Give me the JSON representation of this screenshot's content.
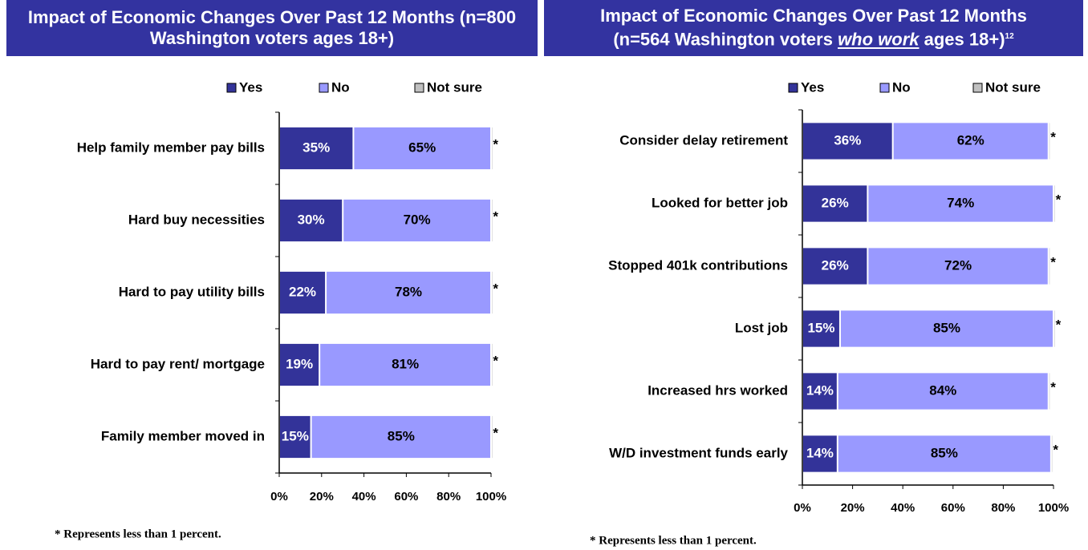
{
  "chart_data": [
    {
      "type": "bar",
      "orientation": "horizontal",
      "stacked": true,
      "title": [
        "Impact of Economic Changes Over Past 12 Months (n=800 Washington voters ages 18+)"
      ],
      "categories": [
        "Help family member pay bills",
        "Hard buy necessities",
        "Hard to pay utility bills",
        "Hard to pay rent/ mortgage",
        "Family member moved in"
      ],
      "series": [
        {
          "name": "Yes",
          "color": "#333399",
          "values": [
            35,
            30,
            22,
            19,
            15
          ],
          "value_labels": [
            "35%",
            "30%",
            "22%",
            "19%",
            "15%"
          ]
        },
        {
          "name": "No",
          "color": "#9999ff",
          "values": [
            65,
            70,
            78,
            81,
            85
          ],
          "value_labels": [
            "65%",
            "70%",
            "78%",
            "81%",
            "85%"
          ]
        },
        {
          "name": "Not sure",
          "color": "#c0c0c0",
          "values": [
            0.5,
            0.5,
            0.5,
            0.5,
            0.5
          ],
          "value_labels": [
            "*",
            "*",
            "*",
            "*",
            "*"
          ]
        }
      ],
      "xlim": [
        0,
        100
      ],
      "xticks": [
        {
          "value": 0,
          "label": "0%"
        },
        {
          "value": 20,
          "label": "20%"
        },
        {
          "value": 40,
          "label": "40%"
        },
        {
          "value": 60,
          "label": "60%"
        },
        {
          "value": 80,
          "label": "80%"
        },
        {
          "value": 100,
          "label": "100%"
        }
      ],
      "legend": "top",
      "footnote": "* Represents less than 1 percent."
    },
    {
      "type": "bar",
      "orientation": "horizontal",
      "stacked": true,
      "title": [
        "Impact of Economic Changes Over Past 12 Months",
        "(n=564 Washington voters ",
        "who work",
        " ages 18+)",
        "12"
      ],
      "categories": [
        "Consider delay retirement",
        "Looked for better job",
        "Stopped 401k contributions",
        "Lost job",
        "Increased hrs worked",
        "W/D investment funds early"
      ],
      "series": [
        {
          "name": "Yes",
          "color": "#333399",
          "values": [
            36,
            26,
            26,
            15,
            14,
            14
          ],
          "value_labels": [
            "36%",
            "26%",
            "26%",
            "15%",
            "14%",
            "14%"
          ]
        },
        {
          "name": "No",
          "color": "#9999ff",
          "values": [
            62,
            74,
            72,
            85,
            84,
            85
          ],
          "value_labels": [
            "62%",
            "74%",
            "72%",
            "85%",
            "84%",
            "85%"
          ]
        },
        {
          "name": "Not sure",
          "color": "#c0c0c0",
          "values": [
            0.5,
            0.5,
            0.5,
            0.5,
            0.5,
            0.5
          ],
          "value_labels": [
            "*",
            "*",
            "*",
            "*",
            "*",
            "*"
          ]
        }
      ],
      "xlim": [
        0,
        100
      ],
      "xticks": [
        {
          "value": 0,
          "label": "0%"
        },
        {
          "value": 20,
          "label": "20%"
        },
        {
          "value": 40,
          "label": "40%"
        },
        {
          "value": 60,
          "label": "60%"
        },
        {
          "value": 80,
          "label": "80%"
        },
        {
          "value": 100,
          "label": "100%"
        }
      ],
      "legend": "top",
      "footnote": "* Represents less than 1 percent."
    }
  ]
}
